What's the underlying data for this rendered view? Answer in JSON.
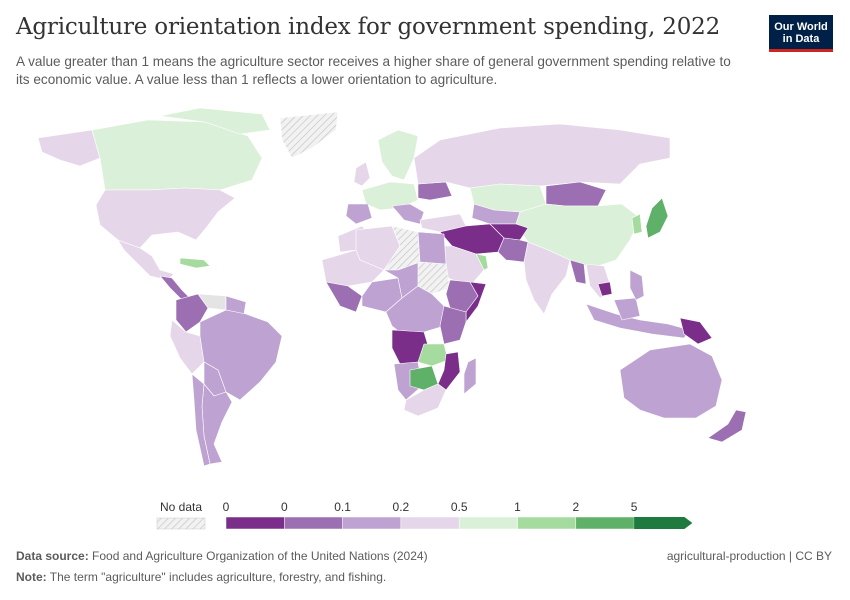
{
  "title": "Agriculture orientation index for government spending, 2022",
  "subtitle": "A value greater than 1 means the agriculture sector receives a higher share of general government spending relative to its economic value. A value less than 1 reflects a lower orientation to agriculture.",
  "logo": {
    "line1": "Our World",
    "line2": "in Data"
  },
  "legend": {
    "no_data_label": "No data",
    "tick_labels": [
      "0",
      "0",
      "0.1",
      "0.2",
      "0.5",
      "1",
      "2",
      "5"
    ],
    "colors": [
      "#7b2d8a",
      "#9c6fb3",
      "#bea3d2",
      "#e6d6e9",
      "#dbf0d8",
      "#a6dba0",
      "#5fb068",
      "#1f7a3f"
    ],
    "no_data_color": "#e4e4e4"
  },
  "footer": {
    "source_label": "Data source:",
    "source_text": "Food and Agriculture Organization of the United Nations (2024)",
    "note_label": "Note:",
    "note_text": "The term \"agriculture\" includes agriculture, forestry, and fishing.",
    "license": "agricultural-production | CC BY"
  }
}
